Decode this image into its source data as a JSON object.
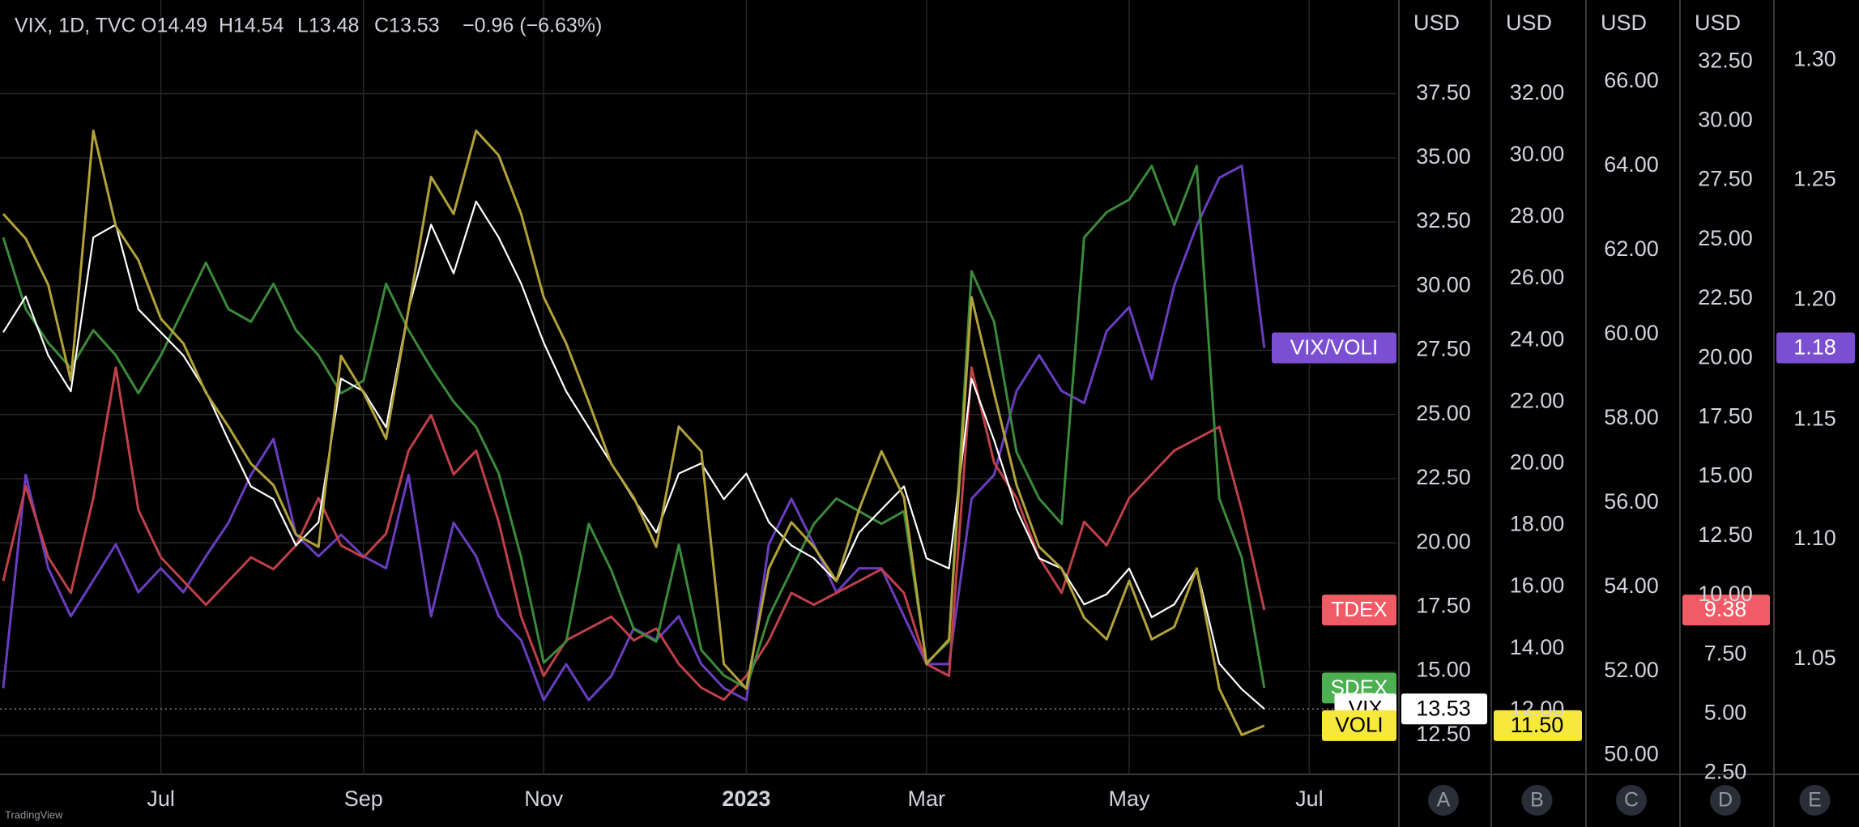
{
  "header": {
    "symbol": "VIX, 1D, TVC",
    "open": "O14.49",
    "high": "H14.54",
    "low": "L13.48",
    "close": "C13.53",
    "change": "−0.96 (−6.63%)"
  },
  "watermark": "TradingView",
  "chart_data": {
    "type": "line",
    "grid": true,
    "categories": [
      null,
      null,
      null,
      null,
      null,
      null,
      null,
      "Jul",
      null,
      null,
      null,
      null,
      null,
      null,
      null,
      null,
      "Sep",
      null,
      null,
      null,
      null,
      null,
      null,
      null,
      "Nov",
      null,
      null,
      null,
      null,
      null,
      null,
      null,
      null,
      "2023",
      null,
      null,
      null,
      null,
      null,
      null,
      null,
      "Mar",
      null,
      null,
      null,
      null,
      null,
      null,
      null,
      null,
      "May",
      null,
      null,
      null,
      null,
      null,
      null,
      null,
      "Jul"
    ],
    "axes": [
      {
        "id": "A",
        "unit": "USD",
        "ylim": [
          10.98,
          41.15
        ],
        "yticks": [
          {
            "value": 12.5,
            "label": "12.50"
          },
          {
            "value": 15,
            "label": "15.00"
          },
          {
            "value": 17.5,
            "label": "17.50"
          },
          {
            "value": 20,
            "label": "20.00"
          },
          {
            "value": 22.5,
            "label": "22.50"
          },
          {
            "value": 25,
            "label": "25.00"
          },
          {
            "value": 27.5,
            "label": "27.50"
          },
          {
            "value": 30,
            "label": "30.00"
          },
          {
            "value": 32.5,
            "label": "32.50"
          },
          {
            "value": 35,
            "label": "35.00"
          },
          {
            "value": 37.5,
            "label": "37.50"
          }
        ]
      },
      {
        "id": "B",
        "unit": "USD",
        "ylim": [
          9.92,
          35.04
        ],
        "yticks": [
          {
            "value": 12,
            "label": "12.00"
          },
          {
            "value": 14,
            "label": "14.00"
          },
          {
            "value": 16,
            "label": "16.00"
          },
          {
            "value": 18,
            "label": "18.00"
          },
          {
            "value": 20,
            "label": "20.00"
          },
          {
            "value": 22,
            "label": "22.00"
          },
          {
            "value": 24,
            "label": "24.00"
          },
          {
            "value": 26,
            "label": "26.00"
          },
          {
            "value": 28,
            "label": "28.00"
          },
          {
            "value": 30,
            "label": "30.00"
          },
          {
            "value": 32,
            "label": "32.00"
          }
        ]
      },
      {
        "id": "C",
        "unit": "USD",
        "ylim": [
          49.55,
          67.94
        ],
        "yticks": [
          {
            "value": 50,
            "label": "50.00"
          },
          {
            "value": 52,
            "label": "52.00"
          },
          {
            "value": 54,
            "label": "54.00"
          },
          {
            "value": 56,
            "label": "56.00"
          },
          {
            "value": 58,
            "label": "58.00"
          },
          {
            "value": 60,
            "label": "60.00"
          },
          {
            "value": 62,
            "label": "62.00"
          },
          {
            "value": 64,
            "label": "64.00"
          },
          {
            "value": 66,
            "label": "66.00"
          }
        ]
      },
      {
        "id": "D",
        "unit": "USD",
        "ylim": [
          2.45,
          35.1
        ],
        "yticks": [
          {
            "value": 2.5,
            "label": "2.50"
          },
          {
            "value": 5,
            "label": "5.00"
          },
          {
            "value": 7.5,
            "label": "7.50"
          },
          {
            "value": 10,
            "label": "10.00"
          },
          {
            "value": 12.5,
            "label": "12.50"
          },
          {
            "value": 15,
            "label": "15.00"
          },
          {
            "value": 17.5,
            "label": "17.50"
          },
          {
            "value": 20,
            "label": "20.00"
          },
          {
            "value": 22.5,
            "label": "22.50"
          },
          {
            "value": 25,
            "label": "25.00"
          },
          {
            "value": 27.5,
            "label": "27.50"
          },
          {
            "value": 30,
            "label": "30.00"
          },
          {
            "value": 32.5,
            "label": "32.50"
          }
        ]
      },
      {
        "id": "E",
        "ylim": [
          1.002,
          1.3252
        ],
        "yticks": [
          1.05,
          {
            "value": 1.1,
            "label": "1.10"
          },
          1.15,
          {
            "value": 1.2,
            "label": "1.20"
          },
          1.25,
          {
            "value": 1.3,
            "label": "1.30"
          }
        ]
      }
    ],
    "series": [
      {
        "name": "VIX/VOLI",
        "axis": "E",
        "color": "#6a3dc0",
        "tag_color": "#7b4fd1",
        "price_label": true,
        "values": [
          1.038,
          1.127,
          1.088,
          1.068,
          1.083,
          1.098,
          1.078,
          1.088,
          1.078,
          1.093,
          1.107,
          1.127,
          1.142,
          1.102,
          1.093,
          1.102,
          1.093,
          1.088,
          1.127,
          1.068,
          1.107,
          1.093,
          1.068,
          1.058,
          1.033,
          1.048,
          1.033,
          1.043,
          1.063,
          1.058,
          1.068,
          1.048,
          1.038,
          1.033,
          1.098,
          1.117,
          1.098,
          1.078,
          1.088,
          1.088,
          1.068,
          1.048,
          1.048,
          1.117,
          1.127,
          1.162,
          1.177,
          1.162,
          1.157,
          1.187,
          1.197,
          1.167,
          1.206,
          1.231,
          1.251,
          1.256,
          1.18,
          null,
          null
        ]
      },
      {
        "name": "TDEX",
        "axis": "D",
        "color": "#c0404a",
        "tag_color": "#f05b65",
        "price_label": true,
        "values": [
          10.6,
          14.6,
          11.6,
          10.1,
          14.1,
          19.6,
          13.6,
          11.6,
          10.6,
          9.6,
          10.6,
          11.6,
          11.1,
          12.1,
          14.1,
          12.1,
          11.6,
          12.6,
          16.1,
          17.6,
          15.1,
          16.1,
          13.1,
          9.1,
          6.6,
          8.1,
          8.6,
          9.1,
          8.1,
          8.6,
          7.1,
          6.1,
          5.6,
          6.6,
          8.1,
          10.1,
          9.6,
          10.1,
          10.6,
          11.1,
          10.1,
          7.1,
          6.6,
          19.6,
          15.6,
          14.1,
          11.6,
          10.1,
          13.1,
          12.1,
          14.1,
          15.1,
          16.1,
          16.6,
          17.1,
          13.6,
          9.38,
          null,
          null
        ]
      },
      {
        "name": "SDEX",
        "axis": "C",
        "color": "#3b8a3b",
        "tag_color": "#4caf50",
        "price_label": false,
        "values": [
          62.3,
          60.6,
          59.8,
          59.2,
          60.1,
          59.5,
          58.6,
          59.5,
          60.6,
          61.7,
          60.6,
          60.3,
          61.2,
          60.1,
          59.5,
          58.6,
          58.9,
          61.2,
          60.1,
          59.2,
          58.4,
          57.8,
          56.7,
          54.7,
          52.2,
          52.7,
          55.5,
          54.4,
          53.0,
          52.7,
          55.0,
          52.5,
          51.9,
          51.6,
          53.3,
          54.4,
          55.5,
          56.1,
          55.8,
          55.5,
          55.8,
          52.2,
          52.7,
          61.5,
          60.3,
          57.2,
          56.1,
          55.5,
          62.3,
          62.9,
          63.2,
          64.0,
          62.6,
          64.0,
          56.1,
          54.7,
          51.6,
          null,
          null
        ]
      },
      {
        "name": "VIX",
        "axis": "A",
        "color": "#ffffff",
        "tag_color": "#ffffff",
        "price_label": true,
        "values": [
          28.2,
          29.6,
          27.3,
          25.9,
          31.9,
          32.4,
          29.1,
          28.2,
          27.3,
          25.9,
          24.0,
          22.2,
          21.7,
          19.9,
          20.8,
          26.4,
          25.9,
          24.5,
          29.1,
          32.4,
          30.5,
          33.3,
          31.9,
          30.1,
          27.8,
          25.9,
          24.5,
          23.1,
          21.7,
          20.4,
          22.7,
          23.1,
          21.7,
          22.7,
          20.8,
          19.9,
          19.4,
          18.5,
          20.4,
          21.3,
          22.2,
          19.4,
          19.0,
          26.4,
          24.0,
          21.3,
          19.4,
          19.0,
          17.6,
          18.0,
          19.0,
          17.1,
          17.6,
          19.0,
          15.3,
          14.3,
          13.53,
          null,
          null
        ]
      },
      {
        "name": "VOLI",
        "axis": "B",
        "color": "#b3a23a",
        "tag_color": "#f7e83c",
        "price_label": true,
        "values": [
          28.1,
          27.3,
          25.8,
          22.7,
          30.8,
          27.7,
          26.6,
          24.7,
          23.9,
          22.3,
          21.2,
          20.0,
          19.3,
          17.7,
          17.3,
          23.5,
          22.3,
          20.8,
          25.0,
          29.3,
          28.1,
          30.8,
          30.0,
          28.1,
          25.4,
          23.9,
          22.0,
          20.0,
          18.9,
          17.3,
          21.2,
          20.4,
          13.5,
          12.7,
          16.6,
          18.1,
          17.3,
          16.2,
          18.5,
          20.4,
          18.9,
          13.5,
          14.3,
          25.4,
          22.3,
          19.3,
          17.3,
          16.6,
          15.0,
          14.3,
          16.2,
          14.3,
          14.7,
          16.6,
          12.7,
          11.2,
          11.5,
          null,
          null
        ],
        "value_labels": [
          null,
          null,
          null,
          null,
          null,
          null,
          null,
          null,
          null,
          null,
          null,
          null,
          null,
          null,
          null,
          null,
          null,
          null,
          null,
          null,
          null,
          null,
          null,
          null,
          null,
          null,
          null,
          null,
          null,
          null,
          null,
          null,
          null,
          null,
          null,
          null,
          null,
          null,
          null,
          null,
          null,
          null,
          null,
          null,
          null,
          null,
          null,
          null,
          null,
          null,
          null,
          null,
          null,
          null,
          null,
          null,
          "11.50",
          null,
          null
        ]
      }
    ]
  }
}
